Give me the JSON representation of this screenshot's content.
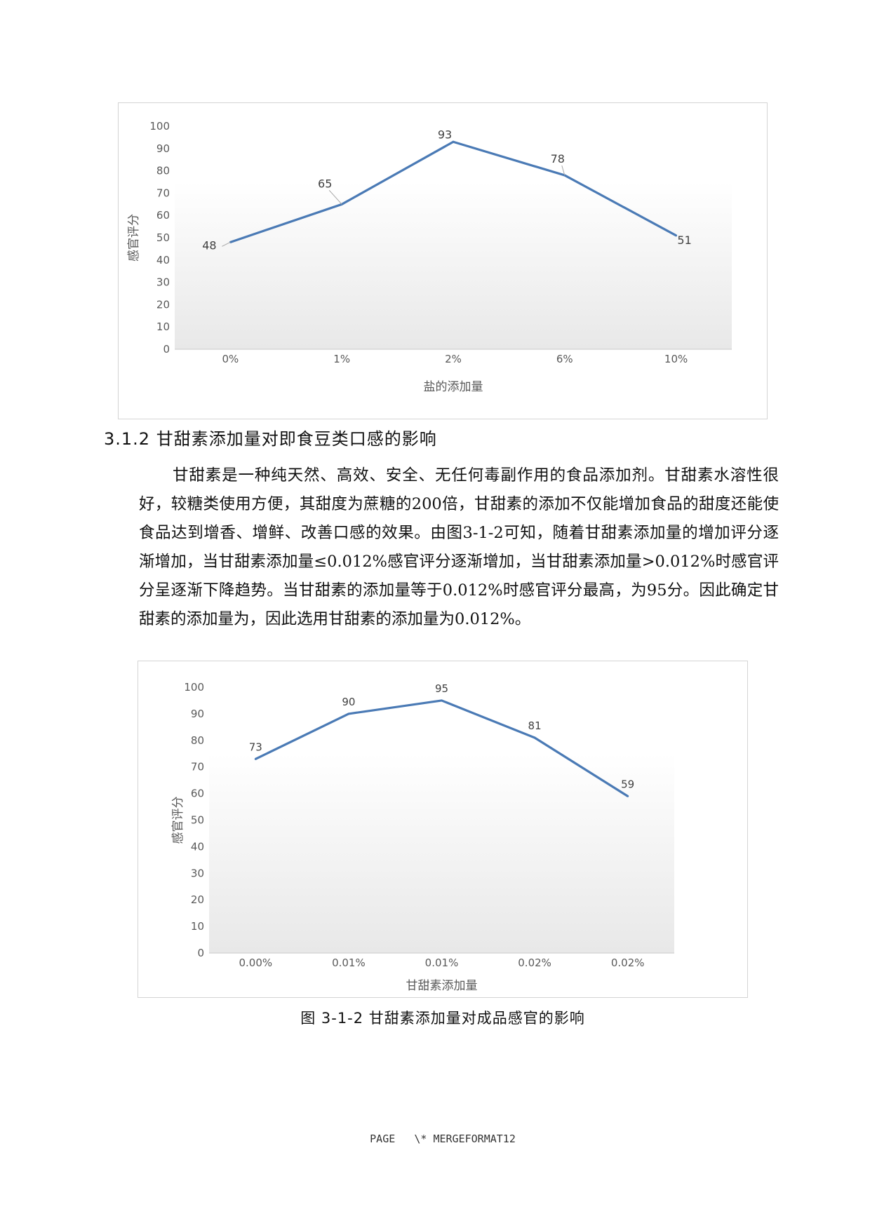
{
  "heading": "3.1.2 甘甜素添加量对即食豆类口感的影响",
  "paragraph": "甘甜素是一种纯天然、高效、安全、无任何毒副作用的食品添加剂。甘甜素水溶性很好，较糖类使用方便，其甜度为蔗糖的200倍，甘甜素的添加不仅能增加食品的甜度还能使食品达到增香、增鲜、改善口感的效果。由图3-1-2可知，随着甘甜素添加量的增加评分逐渐增加，当甘甜素添加量≤0.012%感官评分逐渐增加，当甘甜素添加量>0.012%时感官评分呈逐渐下降趋势。当甘甜素的添加量等于0.012%时感官评分最高，为95分。因此确定甘甜素的添加量为，因此选用甘甜素的添加量为0.012%。",
  "caption": "图 3-1-2 甘甜素添加量对成品感官的影响",
  "footer": "PAGE   \\* MERGEFORMAT12",
  "chart_data": [
    {
      "type": "line",
      "categories": [
        "0%",
        "1%",
        "2%",
        "6%",
        "10%"
      ],
      "series": [
        {
          "values": [
            48,
            65,
            93,
            78,
            51
          ]
        }
      ],
      "data_labels": [
        "48",
        "65",
        "93",
        "78",
        "51"
      ],
      "xlabel": "盐的添加量",
      "ylabel": "感官评分",
      "ylim": [
        0,
        100
      ],
      "yticks": [
        0,
        10,
        20,
        30,
        40,
        50,
        60,
        70,
        80,
        90,
        100
      ],
      "line_color": "#4a7ab5"
    },
    {
      "type": "line",
      "categories": [
        "0.00%",
        "0.01%",
        "0.01%",
        "0.02%",
        "0.02%"
      ],
      "series": [
        {
          "values": [
            73,
            90,
            95,
            81,
            59
          ]
        }
      ],
      "data_labels": [
        "73",
        "90",
        "95",
        "81",
        "59"
      ],
      "xlabel": "甘甜素添加量",
      "ylabel": "感官评分",
      "ylim": [
        0,
        100
      ],
      "yticks": [
        0,
        10,
        20,
        30,
        40,
        50,
        60,
        70,
        80,
        90,
        100
      ],
      "line_color": "#4a7ab5"
    }
  ]
}
